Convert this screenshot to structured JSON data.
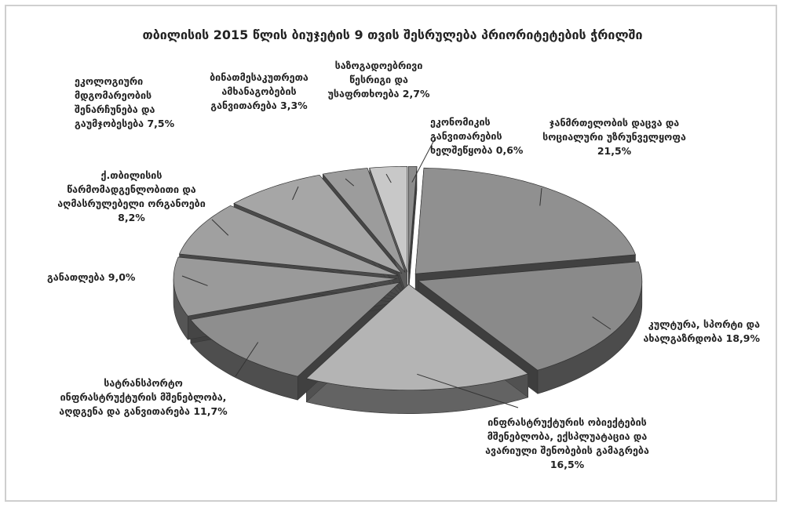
{
  "chart_data": {
    "type": "pie3d",
    "title": "თბილისის 2015 წლის ბიუჯეტის 9 თვის შესრულება პრიორიტეტების ჭრილში",
    "categories": [
      "ეკონომიკის განვითარების ხელშეწყობა",
      "ჯანმრთელობის დაცვა და სოციალური უზრუნველყოფა",
      "კულტურა, სპორტი და ახალგაზრდობა",
      "ინფრასტრუქტურის ობიექტების მშენებლობა, ექსპლუატაცია და ავარიული შენობების გამაგრება",
      "სატრანსპორტო ინფრასტრუქტურის მშენებლობა, აღდგენა და განვითარება",
      "განათლება",
      "ქ.თბილისის წარმომადგენლობითი და აღმასრულებელი ორგანოები",
      "ეკოლოგიური მდგომარეობის შენარჩუნება და გაუმჯობესება",
      "ბინათმესაკუთრეთა ამხანაგობების განვითარება",
      "საზოგადოებრივი წესრიგი და უსაფრთხოება"
    ],
    "values": [
      0.6,
      21.5,
      18.9,
      16.5,
      11.7,
      9.0,
      8.2,
      7.5,
      3.3,
      2.7
    ],
    "value_labels": [
      "0,6%",
      "21,5%",
      "18,9%",
      "16,5%",
      "11,7%",
      "9,0%",
      "8,2%",
      "7,5%",
      "3,3%",
      "2,7%"
    ],
    "colors": [
      "#8c8c8c",
      "#909090",
      "#8a8a8a",
      "#b4b4b4",
      "#8e8e8e",
      "#9a9a9a",
      "#a0a0a0",
      "#a6a6a6",
      "#9c9c9c",
      "#c8c8c8"
    ]
  }
}
